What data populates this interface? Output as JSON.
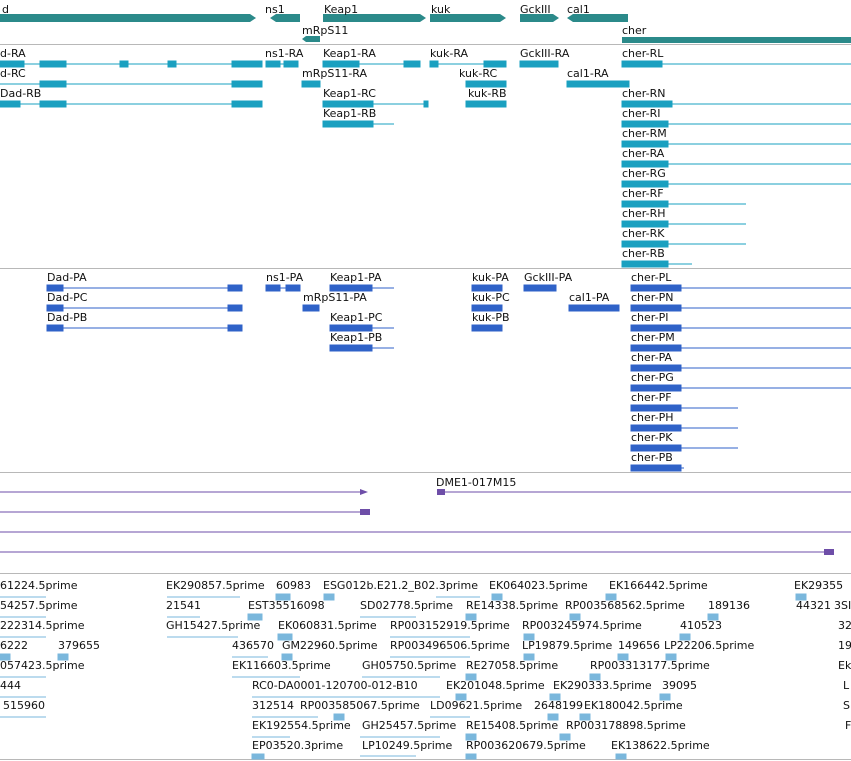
{
  "colors": {
    "gene": "#2b8a8a",
    "transcript": "#1aa0c0",
    "protein": "#2f62c8",
    "clone": "#6e4ea8",
    "est": "#7ab7dc",
    "divider": "#b8b8b8"
  },
  "gene_track": {
    "genes": [
      {
        "label": "d"
      },
      {
        "label": "ns1"
      },
      {
        "label": "Keap1"
      },
      {
        "label": "kuk"
      },
      {
        "label": "GckIII"
      },
      {
        "label": "cal1"
      },
      {
        "label": "mRpS11"
      },
      {
        "label": "cher"
      }
    ]
  },
  "transcript_track": {
    "transcripts": [
      {
        "label": "d-RA"
      },
      {
        "label": "d-RC"
      },
      {
        "label": "Dad-RB"
      },
      {
        "label": "ns1-RA"
      },
      {
        "label": "mRpS11-RA"
      },
      {
        "label": "Keap1-RA"
      },
      {
        "label": "Keap1-RC"
      },
      {
        "label": "Keap1-RB"
      },
      {
        "label": "kuk-RA"
      },
      {
        "label": "kuk-RC"
      },
      {
        "label": "kuk-RB"
      },
      {
        "label": "GckIII-RA"
      },
      {
        "label": "cal1-RA"
      },
      {
        "label": "cher-RL"
      },
      {
        "label": "cher-RN"
      },
      {
        "label": "cher-RI"
      },
      {
        "label": "cher-RM"
      },
      {
        "label": "cher-RA"
      },
      {
        "label": "cher-RG"
      },
      {
        "label": "cher-RF"
      },
      {
        "label": "cher-RH"
      },
      {
        "label": "cher-RK"
      },
      {
        "label": "cher-RB"
      }
    ]
  },
  "protein_track": {
    "proteins": [
      {
        "label": "Dad-PA"
      },
      {
        "label": "Dad-PC"
      },
      {
        "label": "Dad-PB"
      },
      {
        "label": "ns1-PA"
      },
      {
        "label": "mRpS11-PA"
      },
      {
        "label": "Keap1-PA"
      },
      {
        "label": "Keap1-PC"
      },
      {
        "label": "Keap1-PB"
      },
      {
        "label": "kuk-PA"
      },
      {
        "label": "kuk-PC"
      },
      {
        "label": "kuk-PB"
      },
      {
        "label": "GckIII-PA"
      },
      {
        "label": "cal1-PA"
      },
      {
        "label": "cher-PL"
      },
      {
        "label": "cher-PN"
      },
      {
        "label": "cher-PI"
      },
      {
        "label": "cher-PM"
      },
      {
        "label": "cher-PA"
      },
      {
        "label": "cher-PG"
      },
      {
        "label": "cher-PF"
      },
      {
        "label": "cher-PH"
      },
      {
        "label": "cher-PK"
      },
      {
        "label": "cher-PB"
      }
    ]
  },
  "clone_track": {
    "clones": [
      {
        "label": "DME1-017M15"
      }
    ]
  },
  "est_track": {
    "ests": [
      {
        "label": "61224.5prime"
      },
      {
        "label": "EK290857.5prime"
      },
      {
        "label": "60983"
      },
      {
        "label": "ESG012b.E21.2_B02.3prime"
      },
      {
        "label": "EK064023.5prime"
      },
      {
        "label": "EK166442.5prime"
      },
      {
        "label": "EK29355"
      },
      {
        "label": "54257.5prime"
      },
      {
        "label": "21541"
      },
      {
        "label": "EST35516098"
      },
      {
        "label": "SD02778.5prime"
      },
      {
        "label": "RE14338.5prime"
      },
      {
        "label": "RP003568562.5prime"
      },
      {
        "label": "189136"
      },
      {
        "label": "44321"
      },
      {
        "label": "3SI"
      },
      {
        "label": "222314.5prime"
      },
      {
        "label": "GH15427.5prime"
      },
      {
        "label": "EK060831.5prime"
      },
      {
        "label": "RP003152919.5prime"
      },
      {
        "label": "RP003245974.5prime"
      },
      {
        "label": "410523"
      },
      {
        "label": "32"
      },
      {
        "label": "6222"
      },
      {
        "label": "379655"
      },
      {
        "label": "436570"
      },
      {
        "label": "GM22960.5prime"
      },
      {
        "label": "RP003496506.5prime"
      },
      {
        "label": "LP19879.5prime"
      },
      {
        "label": "149656"
      },
      {
        "label": "LP22206.5prime"
      },
      {
        "label": "19"
      },
      {
        "label": "057423.5prime"
      },
      {
        "label": "EK116603.5prime"
      },
      {
        "label": "GH05750.5prime"
      },
      {
        "label": "RE27058.5prime"
      },
      {
        "label": "RP003313177.5prime"
      },
      {
        "label": "Ek"
      },
      {
        "label": "444"
      },
      {
        "label": "RC0-DA0001-120700-012-B10"
      },
      {
        "label": "EK201048.5prime"
      },
      {
        "label": "EK290333.5prime"
      },
      {
        "label": "39095"
      },
      {
        "label": "L"
      },
      {
        "label": "515960"
      },
      {
        "label": "312514"
      },
      {
        "label": "RP003585067.5prime"
      },
      {
        "label": "LD09621.5prime"
      },
      {
        "label": "2648199"
      },
      {
        "label": "EK180042.5prime"
      },
      {
        "label": "S"
      },
      {
        "label": "EK192554.5prime"
      },
      {
        "label": "GH25457.5prime"
      },
      {
        "label": "RE15408.5prime"
      },
      {
        "label": "RP003178898.5prime"
      },
      {
        "label": "F"
      },
      {
        "label": "EP03520.3prime"
      },
      {
        "label": "LP10249.5prime"
      },
      {
        "label": "RP003620679.5prime"
      },
      {
        "label": "EK138622.5prime"
      }
    ]
  }
}
